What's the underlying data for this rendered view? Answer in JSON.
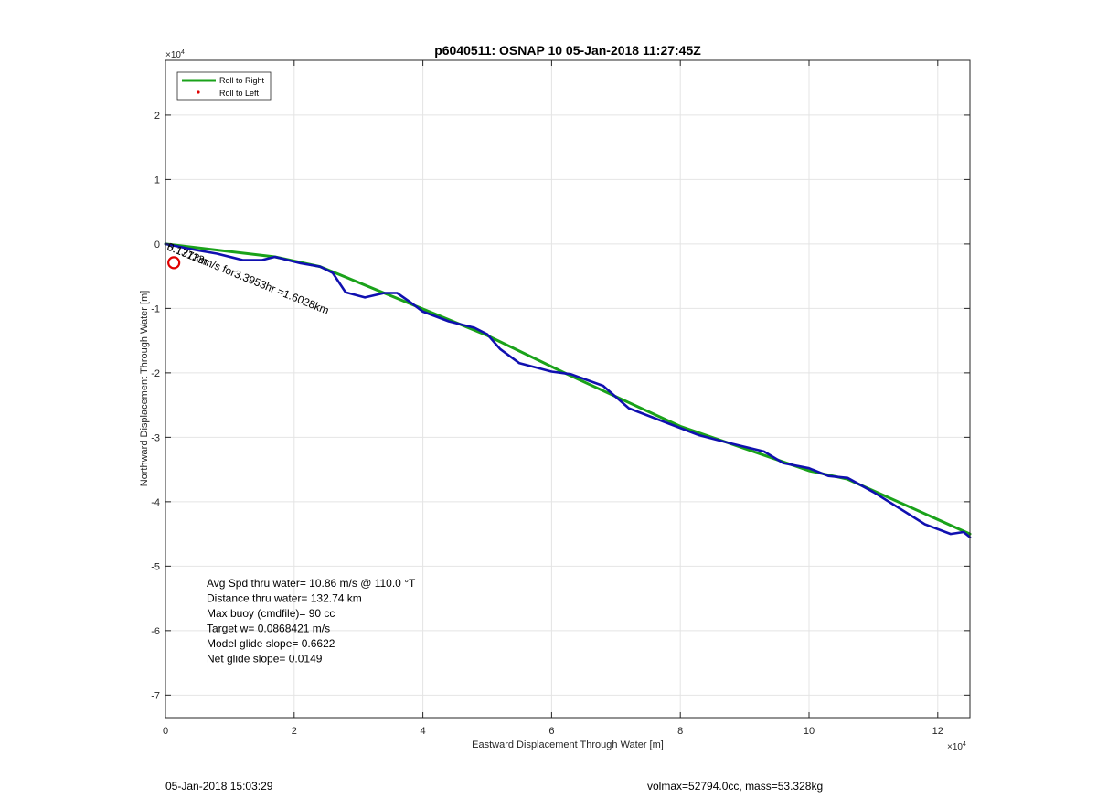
{
  "chart_data": {
    "type": "line",
    "title": "p6040511: OSNAP 10 05-Jan-2018 11:27:45Z",
    "xlabel": "Eastward Displacement Through Water [m]",
    "ylabel": "Northward Displacement Through Water [m]",
    "x_exponent": "×10",
    "x_exponent_power": "4",
    "y_exponent": "×10",
    "y_exponent_power": "4",
    "xlim": [
      0,
      12.5
    ],
    "ylim": [
      -7.35,
      2.85
    ],
    "xticks": [
      0,
      2,
      4,
      6,
      8,
      10,
      12
    ],
    "xtick_labels": [
      "0",
      "2",
      "4",
      "6",
      "8",
      "10",
      "12"
    ],
    "yticks": [
      2,
      1,
      0,
      -1,
      -2,
      -3,
      -4,
      -5,
      -6,
      -7
    ],
    "ytick_labels": [
      "2",
      "1",
      "0",
      "-1",
      "-2",
      "-3",
      "-4",
      "-5",
      "-6",
      "-7"
    ],
    "grid": true,
    "legend_position": "top-left",
    "series": [
      {
        "name": "Roll to Right",
        "color": "#1aa21a",
        "style": "line",
        "x": [
          0,
          1.7,
          2.4,
          5.0,
          6.2,
          8.0,
          10.0,
          10.6,
          12.5
        ],
        "y": [
          0,
          -0.2,
          -0.35,
          -1.42,
          -2.0,
          -2.83,
          -3.52,
          -3.65,
          -4.5
        ]
      },
      {
        "name": "Roll to Left",
        "color": "#e00000",
        "style": "marker",
        "x": [],
        "y": []
      },
      {
        "name": "",
        "color": "#1010b0",
        "style": "line",
        "x": [
          0,
          0.5,
          0.8,
          1.2,
          1.5,
          1.7,
          1.9,
          2.1,
          2.4,
          2.6,
          2.8,
          3.1,
          3.4,
          3.6,
          3.8,
          4.0,
          4.4,
          4.8,
          5.0,
          5.2,
          5.5,
          6.0,
          6.3,
          6.8,
          7.2,
          7.8,
          8.3,
          8.8,
          9.3,
          9.6,
          10.0,
          10.3,
          10.6,
          11.0,
          11.4,
          11.8,
          12.2,
          12.4,
          12.5
        ],
        "y": [
          0,
          -0.1,
          -0.15,
          -0.25,
          -0.25,
          -0.2,
          -0.25,
          -0.3,
          -0.35,
          -0.45,
          -0.75,
          -0.83,
          -0.76,
          -0.76,
          -0.9,
          -1.05,
          -1.2,
          -1.3,
          -1.4,
          -1.63,
          -1.85,
          -1.98,
          -2.02,
          -2.2,
          -2.55,
          -2.78,
          -2.97,
          -3.1,
          -3.22,
          -3.4,
          -3.48,
          -3.6,
          -3.63,
          -3.85,
          -4.1,
          -4.35,
          -4.5,
          -4.47,
          -4.55
        ]
      }
    ],
    "marker": {
      "x": 0.13,
      "y": -0.29,
      "color": "#e00000"
    },
    "segment_annotation": {
      "prefix_overlap": "5.1773m",
      "text": "0.13113m/s for3.3953hr =1.6028km"
    },
    "stats": [
      "Avg Spd thru water= 10.86 m/s @ 110.0 °T",
      "Distance thru water= 132.74 km",
      "Max buoy (cmdfile)= 90 cc",
      "Target w= 0.0868421 m/s",
      "Model glide slope= 0.6622",
      "Net glide slope= 0.0149"
    ]
  },
  "footer": {
    "left": "05-Jan-2018 15:03:29",
    "right": "volmax=52794.0cc, mass=53.328kg"
  }
}
